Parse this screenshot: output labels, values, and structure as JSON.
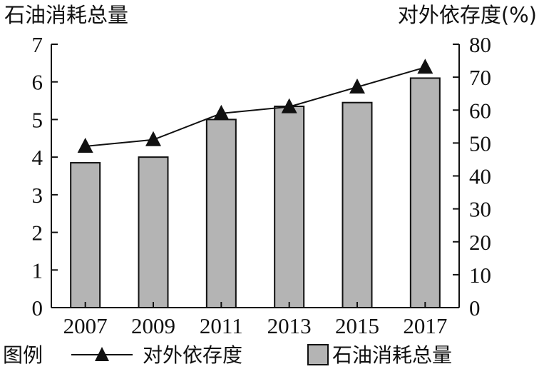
{
  "chart_data": {
    "type": "bar+line",
    "categories": [
      "2007",
      "2009",
      "2011",
      "2013",
      "2015",
      "2017"
    ],
    "left_axis": {
      "label": "石油消耗总量",
      "ticks": [
        "0",
        "1",
        "2",
        "3",
        "4",
        "5",
        "6",
        "7"
      ],
      "ylim": [
        0,
        7
      ]
    },
    "right_axis": {
      "label": "对外依存度(%)",
      "ticks": [
        "0",
        "10",
        "20",
        "30",
        "40",
        "50",
        "60",
        "70",
        "80"
      ],
      "ylim": [
        0,
        80
      ]
    },
    "series": [
      {
        "name": "石油消耗总量",
        "kind": "bar",
        "axis": "left",
        "values": [
          3.85,
          4.0,
          5.0,
          5.35,
          5.45,
          6.1
        ],
        "color": "#b4b4b4"
      },
      {
        "name": "对外依存度",
        "kind": "line",
        "axis": "right",
        "marker": "triangle",
        "values": [
          49,
          51,
          59,
          61,
          67,
          73
        ],
        "color": "#111111"
      }
    ],
    "grid": false,
    "legend": {
      "title": "图例",
      "position": "bottom",
      "items": [
        "对外依存度",
        "石油消耗总量"
      ]
    }
  }
}
